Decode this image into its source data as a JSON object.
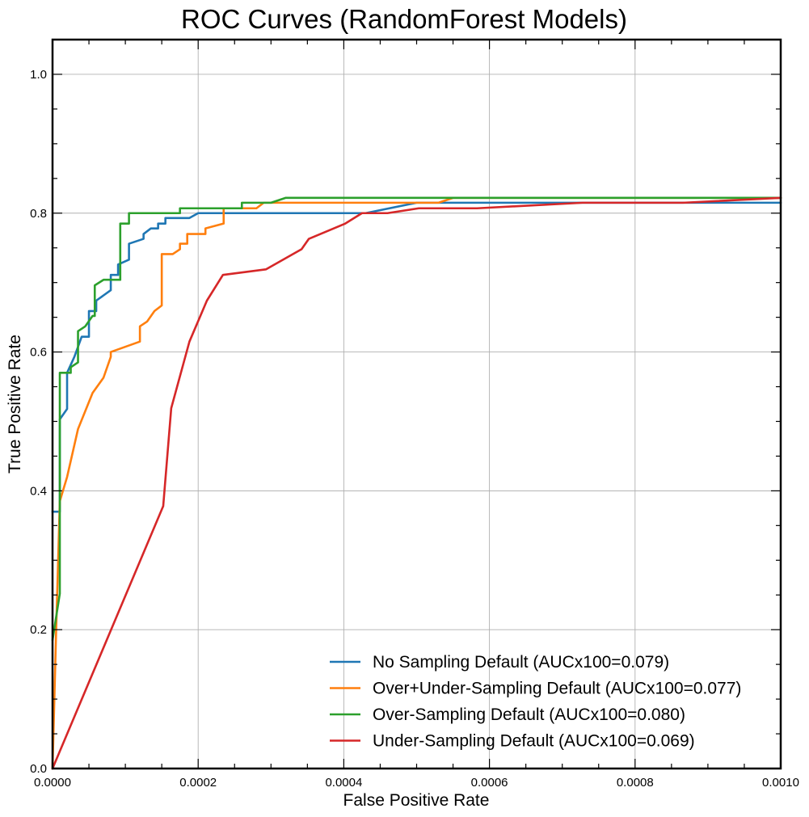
{
  "chart_data": {
    "type": "line",
    "title": "ROC Curves (RandomForest Models)",
    "xlabel": "False Positive Rate",
    "ylabel": "True Positive Rate",
    "xlim": [
      0,
      0.001
    ],
    "ylim": [
      0,
      1.05
    ],
    "x_ticks": [
      "0.0000",
      "0.0002",
      "0.0004",
      "0.0006",
      "0.0008",
      "0.0010"
    ],
    "x_tick_values": [
      0,
      0.0002,
      0.0004,
      0.0006,
      0.0008,
      0.001
    ],
    "y_ticks": [
      "0.0",
      "0.2",
      "0.4",
      "0.6",
      "0.8",
      "1.0"
    ],
    "y_tick_values": [
      0,
      0.2,
      0.4,
      0.6,
      0.8,
      1.0
    ],
    "grid": true,
    "legend_position": "lower-right",
    "series": [
      {
        "name": "No Sampling Default (AUCx100=0.079)",
        "color": "#1f77b4",
        "points": [
          [
            0,
            0.37
          ],
          [
            1e-05,
            0.37
          ],
          [
            1e-05,
            0.503
          ],
          [
            2e-05,
            0.518
          ],
          [
            2e-05,
            0.57
          ],
          [
            3e-05,
            0.593
          ],
          [
            4e-05,
            0.622
          ],
          [
            5e-05,
            0.622
          ],
          [
            5e-05,
            0.659
          ],
          [
            6e-05,
            0.659
          ],
          [
            6e-05,
            0.674
          ],
          [
            8e-05,
            0.689
          ],
          [
            8e-05,
            0.711
          ],
          [
            9e-05,
            0.711
          ],
          [
            9e-05,
            0.726
          ],
          [
            0.000105,
            0.733
          ],
          [
            0.000105,
            0.756
          ],
          [
            0.000125,
            0.763
          ],
          [
            0.000125,
            0.77
          ],
          [
            0.000135,
            0.778
          ],
          [
            0.000145,
            0.778
          ],
          [
            0.000145,
            0.785
          ],
          [
            0.000155,
            0.785
          ],
          [
            0.000155,
            0.793
          ],
          [
            0.000188,
            0.793
          ],
          [
            0.0002,
            0.8
          ],
          [
            0.00043,
            0.8
          ],
          [
            0.0005,
            0.815
          ],
          [
            0.001,
            0.815
          ]
        ]
      },
      {
        "name": "Over+Under-Sampling Default (AUCx100=0.077)",
        "color": "#ff7f0e",
        "points": [
          [
            0,
            0
          ],
          [
            5e-06,
            0.2
          ],
          [
            1e-05,
            0.385
          ],
          [
            2e-05,
            0.42
          ],
          [
            3.5e-05,
            0.489
          ],
          [
            5.5e-05,
            0.541
          ],
          [
            7e-05,
            0.563
          ],
          [
            8e-05,
            0.593
          ],
          [
            8e-05,
            0.6
          ],
          [
            0.00012,
            0.615
          ],
          [
            0.00012,
            0.637
          ],
          [
            0.00013,
            0.644
          ],
          [
            0.00014,
            0.659
          ],
          [
            0.00015,
            0.667
          ],
          [
            0.00015,
            0.741
          ],
          [
            0.000165,
            0.741
          ],
          [
            0.000175,
            0.748
          ],
          [
            0.000175,
            0.756
          ],
          [
            0.000185,
            0.756
          ],
          [
            0.000185,
            0.77
          ],
          [
            0.00021,
            0.77
          ],
          [
            0.00021,
            0.778
          ],
          [
            0.000235,
            0.785
          ],
          [
            0.000235,
            0.807
          ],
          [
            0.00028,
            0.807
          ],
          [
            0.00029,
            0.815
          ],
          [
            0.00053,
            0.815
          ],
          [
            0.00055,
            0.822
          ],
          [
            0.001,
            0.822
          ]
        ]
      },
      {
        "name": "Over-Sampling Default (AUCx100=0.080)",
        "color": "#2ca02c",
        "points": [
          [
            0,
            0.185
          ],
          [
            1e-05,
            0.252
          ],
          [
            1e-05,
            0.57
          ],
          [
            2.5e-05,
            0.57
          ],
          [
            2.5e-05,
            0.578
          ],
          [
            3.5e-05,
            0.585
          ],
          [
            3.5e-05,
            0.63
          ],
          [
            4.5e-05,
            0.637
          ],
          [
            5.5e-05,
            0.652
          ],
          [
            5.8e-05,
            0.652
          ],
          [
            5.8e-05,
            0.696
          ],
          [
            7e-05,
            0.704
          ],
          [
            9.3e-05,
            0.704
          ],
          [
            9.3e-05,
            0.785
          ],
          [
            0.000105,
            0.785
          ],
          [
            0.000105,
            0.8
          ],
          [
            0.000175,
            0.8
          ],
          [
            0.000175,
            0.807
          ],
          [
            0.00026,
            0.807
          ],
          [
            0.00026,
            0.815
          ],
          [
            0.0003,
            0.815
          ],
          [
            0.00032,
            0.822
          ],
          [
            0.001,
            0.822
          ]
        ]
      },
      {
        "name": "Under-Sampling Default (AUCx100=0.069)",
        "color": "#d62728",
        "points": [
          [
            0,
            0
          ],
          [
            0.000152,
            0.378
          ],
          [
            0.000163,
            0.519
          ],
          [
            0.000188,
            0.615
          ],
          [
            0.000212,
            0.674
          ],
          [
            0.000234,
            0.711
          ],
          [
            0.000293,
            0.719
          ],
          [
            0.000342,
            0.748
          ],
          [
            0.000352,
            0.763
          ],
          [
            0.000402,
            0.785
          ],
          [
            0.000425,
            0.8
          ],
          [
            0.00046,
            0.8
          ],
          [
            0.000503,
            0.807
          ],
          [
            0.000583,
            0.807
          ],
          [
            0.000728,
            0.815
          ],
          [
            0.000866,
            0.815
          ],
          [
            0.001,
            0.822
          ]
        ]
      }
    ]
  }
}
